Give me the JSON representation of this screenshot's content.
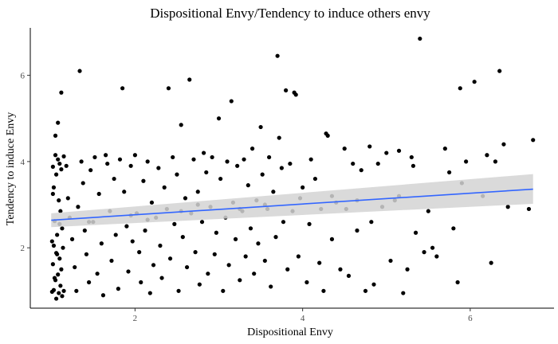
{
  "chart_data": {
    "type": "scatter",
    "title": "Dispositional Envy/Tendency to induce others envy",
    "xlabel": "Dispositional Envy",
    "ylabel": "Tendency to induce Envy",
    "xlim": [
      0.75,
      7.0
    ],
    "ylim": [
      0.6,
      7.1
    ],
    "xticks": [
      2,
      4,
      6
    ],
    "yticks": [
      2,
      4,
      6
    ],
    "grid": false,
    "colors": {
      "points": "#000000",
      "fit_line": "#3366ff",
      "confidence_band": "#d3d3d3",
      "axis": "#000000",
      "tick_text": "#4d4d4d"
    },
    "trend": {
      "type": "linear",
      "x": [
        1.0,
        6.75
      ],
      "y": [
        2.64,
        3.36
      ],
      "ci_lower": [
        2.48,
        3.02
      ],
      "ci_upper": [
        2.8,
        3.71
      ]
    },
    "points": [
      [
        1.05,
        4.15
      ],
      [
        1.08,
        4.05
      ],
      [
        1.1,
        3.95
      ],
      [
        1.02,
        3.88
      ],
      [
        1.12,
        3.82
      ],
      [
        1.06,
        3.7
      ],
      [
        1.15,
        4.12
      ],
      [
        1.03,
        3.4
      ],
      [
        1.09,
        3.1
      ],
      [
        1.11,
        2.85
      ],
      [
        1.04,
        2.62
      ],
      [
        1.13,
        2.45
      ],
      [
        1.07,
        2.3
      ],
      [
        1.01,
        2.15
      ],
      [
        1.14,
        2.0
      ],
      [
        1.06,
        1.88
      ],
      [
        1.1,
        1.75
      ],
      [
        1.02,
        1.62
      ],
      [
        1.12,
        1.5
      ],
      [
        1.08,
        1.38
      ],
      [
        1.05,
        1.25
      ],
      [
        1.11,
        1.12
      ],
      [
        1.03,
        1.02
      ],
      [
        1.09,
        0.95
      ],
      [
        1.13,
        0.88
      ],
      [
        1.06,
        0.82
      ],
      [
        1.04,
        1.3
      ],
      [
        1.07,
        1.85
      ],
      [
        1.1,
        2.55
      ],
      [
        1.02,
        3.25
      ],
      [
        1.08,
        4.9
      ],
      [
        1.05,
        4.6
      ],
      [
        1.12,
        5.6
      ],
      [
        1.03,
        2.05
      ],
      [
        1.15,
        1.0
      ],
      [
        1.01,
        0.98
      ],
      [
        1.18,
        3.9
      ],
      [
        1.2,
        3.15
      ],
      [
        1.22,
        2.7
      ],
      [
        1.25,
        2.2
      ],
      [
        1.28,
        1.55
      ],
      [
        1.3,
        1.0
      ],
      [
        1.32,
        2.95
      ],
      [
        1.34,
        6.1
      ],
      [
        1.36,
        4.0
      ],
      [
        1.38,
        3.5
      ],
      [
        1.4,
        2.4
      ],
      [
        1.42,
        1.85
      ],
      [
        1.45,
        1.2
      ],
      [
        1.47,
        3.8
      ],
      [
        1.5,
        2.6
      ],
      [
        1.52,
        4.1
      ],
      [
        1.55,
        1.4
      ],
      [
        1.57,
        3.25
      ],
      [
        1.6,
        2.1
      ],
      [
        1.62,
        0.9
      ],
      [
        1.65,
        4.15
      ],
      [
        1.67,
        3.95
      ],
      [
        1.7,
        2.85
      ],
      [
        1.72,
        1.7
      ],
      [
        1.75,
        3.6
      ],
      [
        1.77,
        2.3
      ],
      [
        1.8,
        1.05
      ],
      [
        1.82,
        4.05
      ],
      [
        1.85,
        5.7
      ],
      [
        1.87,
        3.3
      ],
      [
        1.9,
        2.5
      ],
      [
        1.92,
        1.45
      ],
      [
        1.95,
        3.9
      ],
      [
        1.97,
        2.15
      ],
      [
        2.0,
        4.15
      ],
      [
        2.02,
        2.8
      ],
      [
        2.05,
        1.9
      ],
      [
        2.07,
        1.2
      ],
      [
        2.1,
        3.55
      ],
      [
        2.12,
        2.4
      ],
      [
        2.15,
        4.0
      ],
      [
        2.18,
        0.95
      ],
      [
        2.2,
        3.05
      ],
      [
        2.22,
        1.6
      ],
      [
        2.25,
        2.7
      ],
      [
        2.28,
        3.85
      ],
      [
        2.3,
        2.05
      ],
      [
        2.32,
        1.3
      ],
      [
        2.35,
        3.4
      ],
      [
        2.38,
        2.9
      ],
      [
        2.4,
        5.7
      ],
      [
        2.42,
        1.75
      ],
      [
        2.45,
        4.1
      ],
      [
        2.47,
        2.55
      ],
      [
        2.5,
        3.7
      ],
      [
        2.52,
        1.0
      ],
      [
        2.55,
        4.85
      ],
      [
        2.57,
        2.25
      ],
      [
        2.6,
        3.15
      ],
      [
        2.62,
        1.55
      ],
      [
        2.65,
        5.9
      ],
      [
        2.67,
        2.8
      ],
      [
        2.7,
        4.05
      ],
      [
        2.72,
        1.9
      ],
      [
        2.75,
        3.3
      ],
      [
        2.77,
        1.15
      ],
      [
        2.8,
        2.6
      ],
      [
        2.82,
        4.2
      ],
      [
        2.85,
        3.75
      ],
      [
        2.87,
        1.4
      ],
      [
        2.9,
        2.95
      ],
      [
        2.92,
        4.1
      ],
      [
        2.95,
        1.85
      ],
      [
        2.97,
        2.35
      ],
      [
        3.0,
        5.0
      ],
      [
        3.02,
        3.6
      ],
      [
        3.05,
        1.0
      ],
      [
        3.08,
        2.7
      ],
      [
        3.1,
        4.0
      ],
      [
        3.12,
        1.6
      ],
      [
        3.15,
        5.4
      ],
      [
        3.17,
        3.05
      ],
      [
        3.2,
        2.2
      ],
      [
        3.22,
        3.9
      ],
      [
        3.25,
        1.25
      ],
      [
        3.28,
        2.85
      ],
      [
        3.3,
        4.05
      ],
      [
        3.32,
        1.8
      ],
      [
        3.35,
        3.45
      ],
      [
        3.38,
        2.45
      ],
      [
        3.4,
        4.3
      ],
      [
        3.42,
        1.4
      ],
      [
        3.45,
        3.1
      ],
      [
        3.47,
        2.1
      ],
      [
        3.5,
        4.8
      ],
      [
        3.52,
        3.7
      ],
      [
        3.55,
        1.7
      ],
      [
        3.58,
        2.9
      ],
      [
        3.6,
        4.1
      ],
      [
        3.62,
        1.1
      ],
      [
        3.65,
        3.3
      ],
      [
        3.68,
        2.25
      ],
      [
        3.7,
        6.45
      ],
      [
        3.72,
        4.55
      ],
      [
        3.75,
        3.85
      ],
      [
        3.77,
        2.6
      ],
      [
        3.8,
        5.65
      ],
      [
        3.82,
        1.5
      ],
      [
        3.85,
        3.95
      ],
      [
        3.88,
        2.85
      ],
      [
        3.9,
        5.6
      ],
      [
        3.92,
        5.55
      ],
      [
        3.95,
        1.8
      ],
      [
        3.97,
        3.15
      ],
      [
        4.0,
        3.4
      ],
      [
        4.05,
        1.2
      ],
      [
        4.08,
        2.55
      ],
      [
        4.1,
        4.05
      ],
      [
        4.15,
        3.6
      ],
      [
        4.2,
        1.65
      ],
      [
        4.22,
        2.9
      ],
      [
        4.25,
        1.0
      ],
      [
        4.28,
        4.65
      ],
      [
        4.3,
        4.6
      ],
      [
        4.35,
        2.2
      ],
      [
        4.4,
        3.05
      ],
      [
        4.45,
        1.5
      ],
      [
        4.5,
        4.3
      ],
      [
        4.52,
        2.9
      ],
      [
        4.55,
        1.35
      ],
      [
        4.6,
        3.95
      ],
      [
        4.65,
        2.4
      ],
      [
        4.7,
        3.8
      ],
      [
        4.75,
        1.0
      ],
      [
        4.8,
        4.35
      ],
      [
        4.82,
        2.6
      ],
      [
        4.85,
        1.15
      ],
      [
        4.9,
        3.95
      ],
      [
        4.95,
        2.95
      ],
      [
        5.0,
        4.2
      ],
      [
        5.05,
        1.7
      ],
      [
        5.1,
        3.1
      ],
      [
        5.15,
        4.25
      ],
      [
        5.2,
        0.95
      ],
      [
        5.25,
        1.5
      ],
      [
        5.3,
        4.1
      ],
      [
        5.32,
        3.9
      ],
      [
        5.35,
        2.35
      ],
      [
        5.4,
        6.85
      ],
      [
        5.45,
        1.9
      ],
      [
        5.5,
        2.85
      ],
      [
        5.55,
        2.0
      ],
      [
        5.6,
        1.8
      ],
      [
        5.7,
        4.3
      ],
      [
        5.75,
        3.75
      ],
      [
        5.8,
        2.45
      ],
      [
        5.85,
        1.2
      ],
      [
        5.88,
        5.7
      ],
      [
        5.9,
        3.5
      ],
      [
        5.95,
        4.0
      ],
      [
        6.05,
        5.85
      ],
      [
        6.15,
        3.2
      ],
      [
        6.2,
        4.15
      ],
      [
        6.25,
        1.65
      ],
      [
        6.3,
        4.0
      ],
      [
        6.35,
        6.1
      ],
      [
        6.4,
        4.4
      ],
      [
        6.45,
        2.95
      ],
      [
        6.75,
        4.5
      ],
      [
        6.7,
        2.9
      ],
      [
        5.15,
        3.2
      ],
      [
        4.35,
        3.2
      ],
      [
        3.55,
        3.0
      ],
      [
        2.75,
        3.0
      ],
      [
        1.95,
        2.75
      ],
      [
        2.55,
        2.85
      ],
      [
        3.25,
        2.9
      ],
      [
        4.65,
        3.1
      ],
      [
        1.45,
        2.6
      ],
      [
        2.15,
        2.65
      ]
    ]
  }
}
